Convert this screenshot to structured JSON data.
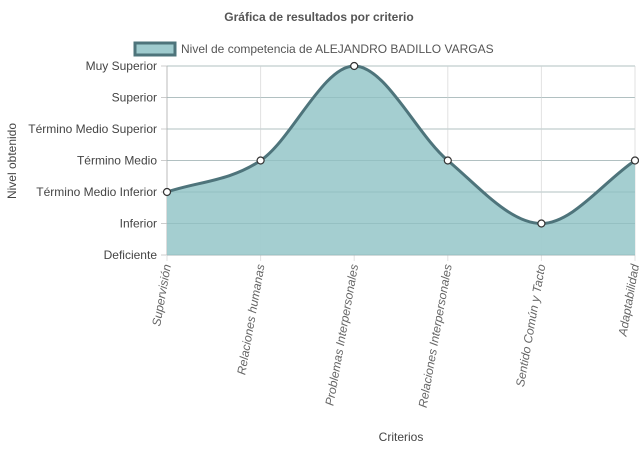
{
  "chart_data": {
    "type": "area",
    "title": "Gráfica de resultados por criterio",
    "xlabel": "Criterios",
    "ylabel": "Nivel obtenido",
    "y_levels": [
      "Deficiente",
      "Inferior",
      "Término Medio Inferior",
      "Término Medio",
      "Término Medio Superior",
      "Superior",
      "Muy Superior"
    ],
    "categories": [
      "Supervisión",
      "Relaciones humanas",
      "Problemas Interpersonales",
      "Relaciones Interpersonales",
      "Sentido Común y Tacto",
      "Adaptabilidad"
    ],
    "series": [
      {
        "name": "Nivel de competencia de ALEJANDRO BADILLO VARGAS",
        "values": [
          2,
          3,
          6,
          3,
          1,
          3
        ]
      }
    ],
    "ylim": [
      0,
      6
    ],
    "grid": true,
    "legend_position": "top",
    "colors": {
      "fill": "#9fcbce",
      "stroke": "#4e747b",
      "point_fill": "#ffffff",
      "grid": "#cccccc"
    }
  }
}
